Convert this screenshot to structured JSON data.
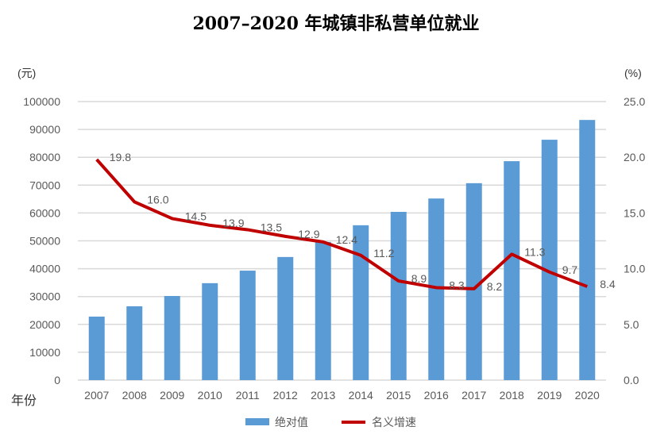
{
  "chart_data": {
    "type": "bar+line",
    "title": "2007–2020 年城镇非私营单位就业",
    "categories": [
      "2007",
      "2008",
      "2009",
      "2010",
      "2011",
      "2012",
      "2013",
      "2014",
      "2015",
      "2016",
      "2017",
      "2018",
      "2019",
      "2020"
    ],
    "xlabel": "年份",
    "y_left": {
      "unit": "(元)",
      "range": [
        0,
        100000
      ],
      "ticks": [
        "0",
        "10000",
        "20000",
        "30000",
        "40000",
        "50000",
        "60000",
        "70000",
        "80000",
        "90000",
        "100000"
      ]
    },
    "y_right": {
      "unit": "(%)",
      "range": [
        0,
        25
      ],
      "ticks": [
        "0.0",
        "5.0",
        "10.0",
        "15.0",
        "20.0",
        "25.0"
      ]
    },
    "grid": true,
    "legend_position": "bottom",
    "series": [
      {
        "name": "绝对值",
        "type": "bar",
        "axis": "left",
        "color": "#5b9bd5",
        "values": [
          22800,
          26500,
          30200,
          34800,
          39300,
          44200,
          49600,
          55600,
          60400,
          65200,
          70700,
          78600,
          86300,
          93400
        ]
      },
      {
        "name": "名义增速",
        "type": "line",
        "axis": "right",
        "color": "#c00000",
        "values": [
          19.8,
          16.0,
          14.5,
          13.9,
          13.5,
          12.9,
          12.4,
          11.2,
          8.9,
          8.3,
          8.2,
          11.3,
          9.7,
          8.4
        ],
        "labels": [
          "19.8",
          "16.0",
          "14.5",
          "13.9",
          "13.5",
          "12.9",
          "12.4",
          "11.2",
          "8.9",
          "8.3",
          "8.2",
          "11.3",
          "9.7",
          "8.4"
        ]
      }
    ]
  }
}
